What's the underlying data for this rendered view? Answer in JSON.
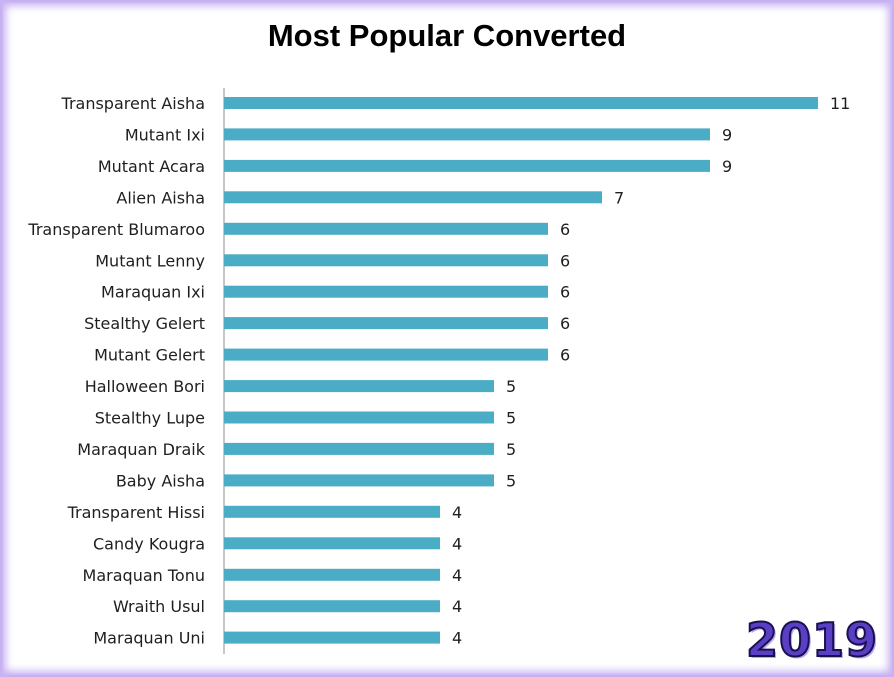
{
  "chart_data": {
    "type": "bar",
    "orientation": "horizontal",
    "title": "Most Popular Converted",
    "xlabel": "",
    "ylabel": "",
    "grid": false,
    "legend": "none",
    "data_labels": true,
    "xlim": [
      0,
      11
    ],
    "bar_color": "#4bacc6",
    "categories": [
      "Transparent Aisha",
      "Mutant Ixi",
      "Mutant Acara",
      "Alien Aisha",
      "Transparent Blumaroo",
      "Mutant Lenny",
      "Maraquan Ixi",
      "Stealthy Gelert",
      "Mutant Gelert",
      "Halloween Bori",
      "Stealthy Lupe",
      "Maraquan Draik",
      "Baby Aisha",
      "Transparent Hissi",
      "Candy Kougra",
      "Maraquan Tonu",
      "Wraith Usul",
      "Maraquan Uni"
    ],
    "values": [
      11,
      9,
      9,
      7,
      6,
      6,
      6,
      6,
      6,
      5,
      5,
      5,
      5,
      4,
      4,
      4,
      4,
      4
    ]
  },
  "stamp": {
    "text": "2019",
    "color": "#5a3fc4"
  },
  "frame": {
    "glow_color": "#c9b3f2"
  }
}
